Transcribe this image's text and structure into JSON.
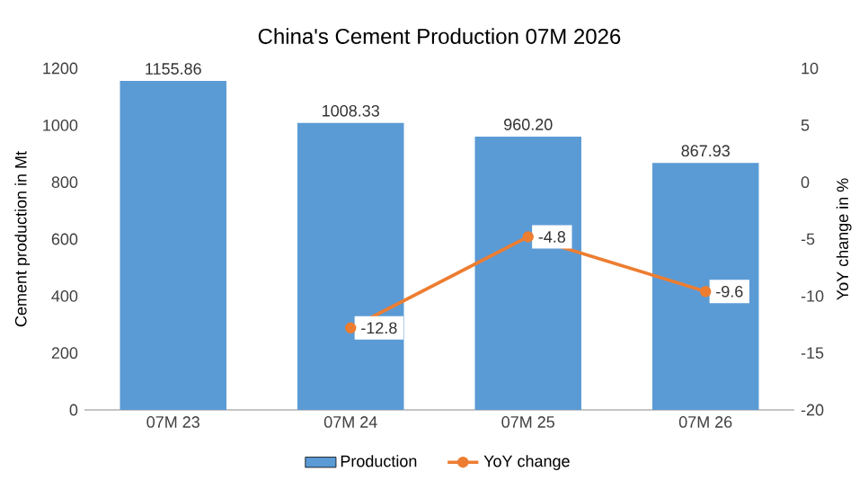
{
  "chart_data": {
    "type": "bar",
    "title": "China's Cement Production 07M 2026",
    "categories": [
      "07M 23",
      "07M 24",
      "07M 25",
      "07M 26"
    ],
    "ylabel": "Cement production in Mt",
    "y2label": "YoY change in %",
    "ylim": [
      0,
      1200
    ],
    "yticks": [
      0,
      200,
      400,
      600,
      800,
      1000,
      1200
    ],
    "y2lim": [
      -20,
      10
    ],
    "y2ticks": [
      -20,
      -15,
      -10,
      -5,
      0,
      5,
      10
    ],
    "series": [
      {
        "name": "Production",
        "color": "#5b9bd5",
        "values": [
          1155.86,
          1008.33,
          960.2,
          867.93
        ],
        "value_labels": [
          "1155.86",
          "1008.33",
          "960.20",
          "867.93"
        ]
      },
      {
        "name": "YoY change",
        "type": "line",
        "axis": "y2",
        "color": "#ed7d31",
        "marker": "circle",
        "values": [
          null,
          -12.8,
          -4.8,
          -9.6
        ],
        "value_labels": [
          null,
          "-12.8",
          "-4.8",
          "-9.6"
        ]
      }
    ],
    "legend": "bottom",
    "grid": false
  }
}
